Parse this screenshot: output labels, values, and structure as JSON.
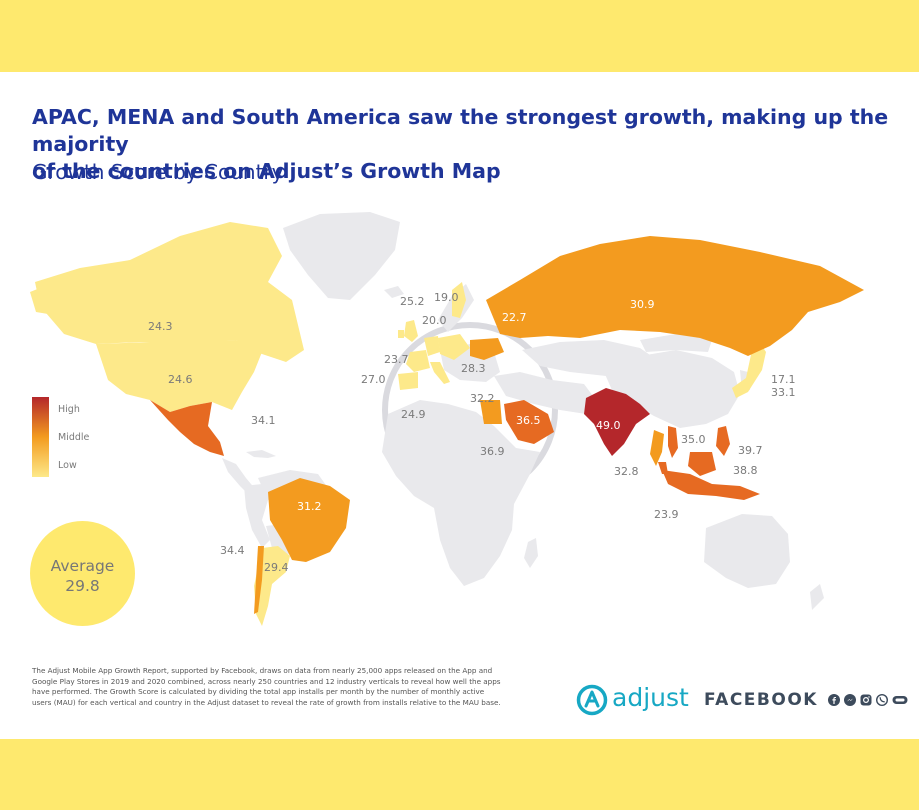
{
  "colors": {
    "band": "#fee96e",
    "title": "#1f3598",
    "nodata": "#e9e9ec",
    "low": "#fde98a",
    "mid": "#f39b1f",
    "high": "#b4272b",
    "adjust": "#17a8c4",
    "facebook": "#3d4b5c"
  },
  "header": {
    "title_line1": "APAC, MENA and South America saw the strongest growth, making up the majority",
    "title_line2": "of the countries on Adjust’s Growth Map",
    "subtitle": "Growth Score by Country"
  },
  "legend": {
    "high": "High",
    "middle": "Middle",
    "low": "Low"
  },
  "average": {
    "label": "Average",
    "value": "29.8"
  },
  "map_data": {
    "metric": "Growth Score",
    "countries": [
      {
        "value": "24.3"
      },
      {
        "value": "24.6"
      },
      {
        "value": "34.1"
      },
      {
        "value": "31.2"
      },
      {
        "value": "34.4"
      },
      {
        "value": "29.4"
      },
      {
        "value": "25.2"
      },
      {
        "value": "19.0"
      },
      {
        "value": "20.0"
      },
      {
        "value": "23.7"
      },
      {
        "value": "27.0"
      },
      {
        "value": "24.9"
      },
      {
        "value": "28.3"
      },
      {
        "value": "22.7"
      },
      {
        "value": "30.9"
      },
      {
        "value": "32.2"
      },
      {
        "value": "36.5"
      },
      {
        "value": "36.9"
      },
      {
        "value": "49.0"
      },
      {
        "value": "32.8"
      },
      {
        "value": "35.0"
      },
      {
        "value": "39.7"
      },
      {
        "value": "38.8"
      },
      {
        "value": "23.9"
      },
      {
        "value": "17.1"
      },
      {
        "value": "33.1"
      }
    ]
  },
  "footnote": "The Adjust Mobile App Growth Report, supported by Facebook, draws on data from nearly 25,000 apps released on the App and Google Play Stores in 2019 and 2020 combined, across nearly 250 countries and 12 industry verticals to reveal how well the apps have performed. The Growth Score is calculated by dividing the total app installs per month by the number of monthly active users (MAU) for each vertical and country in the Adjust dataset to reveal the rate of growth from installs relative to the MAU base.",
  "logos": {
    "adjust": "adjust",
    "facebook": "FACEBOOK"
  },
  "social_icons": [
    "facebook-icon",
    "messenger-icon",
    "instagram-icon",
    "whatsapp-icon",
    "oculus-icon"
  ]
}
